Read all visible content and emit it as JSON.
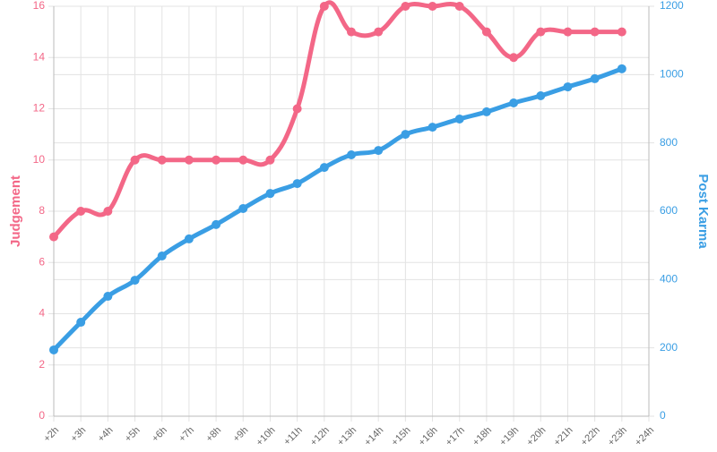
{
  "chart_data": {
    "type": "line",
    "categories": [
      "+2h",
      "+3h",
      "+4h",
      "+5h",
      "+6h",
      "+7h",
      "+8h",
      "+9h",
      "+10h",
      "+11h",
      "+12h",
      "+13h",
      "+14h",
      "+15h",
      "+16h",
      "+17h",
      "+18h",
      "+19h",
      "+20h",
      "+21h",
      "+22h",
      "+23h",
      "+24h"
    ],
    "series": [
      {
        "name": "Judgement",
        "color": "#f36787",
        "values": [
          7,
          8,
          8,
          10,
          10,
          10,
          10,
          10,
          10,
          12,
          16,
          15,
          15,
          16,
          16,
          16,
          15,
          14,
          15,
          15,
          15,
          15,
          null
        ]
      },
      {
        "name": "Post Karma",
        "color": "#3a9ee4",
        "axis": "y2",
        "values": [
          194,
          275,
          351,
          398,
          469,
          519,
          561,
          608,
          652,
          681,
          728,
          765,
          778,
          825,
          846,
          870,
          891,
          917,
          938,
          964,
          988,
          1017,
          null
        ]
      }
    ],
    "ylabel": "Judgement",
    "y2label": "Post Karma",
    "ylim": [
      0,
      16
    ],
    "yticks": [
      0,
      2,
      4,
      6,
      8,
      10,
      12,
      14,
      16
    ],
    "y2lim": [
      0,
      1200
    ],
    "y2ticks": [
      0,
      200,
      400,
      600,
      800,
      1000,
      1200
    ],
    "grid": true
  }
}
